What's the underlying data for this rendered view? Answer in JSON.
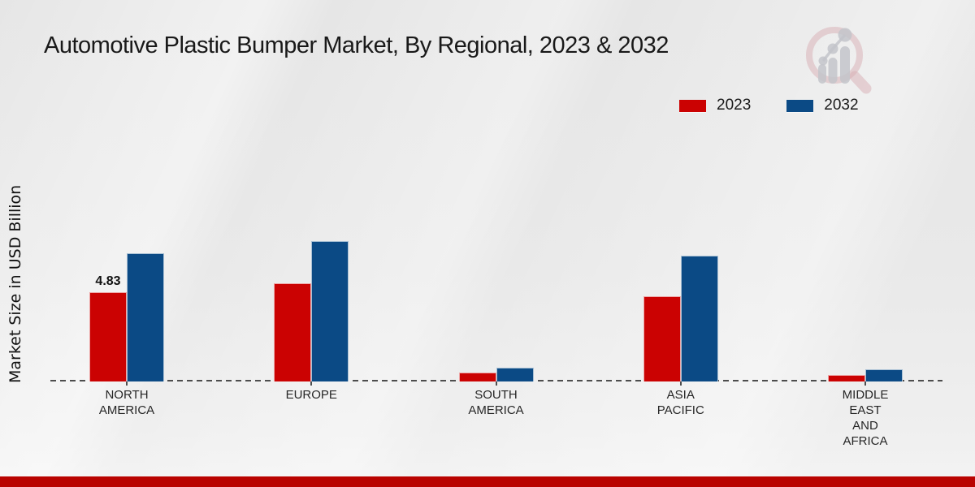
{
  "title": "Automotive Plastic Bumper Market, By Regional, 2023 & 2032",
  "y_axis_label": "Market Size in USD Billion",
  "legend": {
    "items": [
      {
        "label": "2023",
        "color": "#cb0202"
      },
      {
        "label": "2032",
        "color": "#0b4a85"
      }
    ]
  },
  "chart_data": {
    "type": "bar",
    "title": "Automotive Plastic Bumper Market, By Regional, 2023 & 2032",
    "categories": [
      "NORTH AMERICA",
      "EUROPE",
      "SOUTH AMERICA",
      "ASIA PACIFIC",
      "MIDDLE EAST AND AFRICA"
    ],
    "series": [
      {
        "name": "2023",
        "color": "#cb0202",
        "values": [
          4.83,
          5.31,
          0.48,
          4.61,
          0.35
        ]
      },
      {
        "name": "2032",
        "color": "#0b4a85",
        "values": [
          6.94,
          7.6,
          0.75,
          6.81,
          0.66
        ]
      }
    ],
    "data_labels": [
      {
        "category": "NORTH AMERICA",
        "series": "2023",
        "text": "4.83"
      }
    ],
    "xlabel": "",
    "ylabel": "Market Size in USD Billion",
    "ylim": [
      0,
      8
    ],
    "grid": false,
    "legend_position": "top-right",
    "baseline_style": "dashed"
  },
  "icons": {
    "logo": "market-research-future-logo"
  },
  "footer": {
    "accent_color": "#b90300"
  }
}
